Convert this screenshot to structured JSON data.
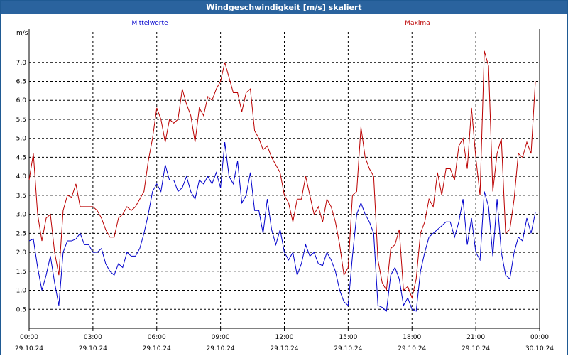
{
  "window": {
    "title": "Windgeschwindigkeit [m/s] skaliert"
  },
  "chart_data": {
    "type": "line",
    "title": "Windgeschwindigkeit [m/s] skaliert",
    "ylabel": "m/s",
    "ylim": [
      0,
      7.8
    ],
    "y_ticks": [
      0.5,
      1.0,
      1.5,
      2.0,
      2.5,
      3.0,
      3.5,
      4.0,
      4.5,
      5.0,
      5.5,
      6.0,
      6.5,
      7.0
    ],
    "y_tick_labels": [
      "0,5",
      "1,0",
      "1,5",
      "2,0",
      "2,5",
      "3,0",
      "3,5",
      "4,0",
      "4,5",
      "5,0",
      "5,5",
      "6,0",
      "6,5",
      "7,0"
    ],
    "xlim_hours": [
      0,
      24
    ],
    "x_ticks": [
      {
        "hour": 0,
        "time": "00:00",
        "date": "29.10.24"
      },
      {
        "hour": 3,
        "time": "03:00",
        "date": "29.10.24"
      },
      {
        "hour": 6,
        "time": "06:00",
        "date": "29.10.24"
      },
      {
        "hour": 9,
        "time": "09:00",
        "date": "29.10.24"
      },
      {
        "hour": 12,
        "time": "12:00",
        "date": "29.10.24"
      },
      {
        "hour": 15,
        "time": "15:00",
        "date": "29.10.24"
      },
      {
        "hour": 18,
        "time": "18:00",
        "date": "29.10.24"
      },
      {
        "hour": 21,
        "time": "21:00",
        "date": "29.10.24"
      },
      {
        "hour": 24,
        "time": "00:00",
        "date": "30.10.24"
      }
    ],
    "grid": true,
    "series": [
      {
        "name": "Mittelwerte",
        "color": "#0000cc",
        "points": [
          [
            0.0,
            2.3
          ],
          [
            0.2,
            2.35
          ],
          [
            0.4,
            1.6
          ],
          [
            0.6,
            1.0
          ],
          [
            0.8,
            1.4
          ],
          [
            1.0,
            1.9
          ],
          [
            1.2,
            1.2
          ],
          [
            1.4,
            0.6
          ],
          [
            1.6,
            2.0
          ],
          [
            1.8,
            2.3
          ],
          [
            2.0,
            2.3
          ],
          [
            2.2,
            2.35
          ],
          [
            2.4,
            2.5
          ],
          [
            2.6,
            2.2
          ],
          [
            2.8,
            2.2
          ],
          [
            3.0,
            2.0
          ],
          [
            3.2,
            2.0
          ],
          [
            3.4,
            2.1
          ],
          [
            3.6,
            1.7
          ],
          [
            3.8,
            1.5
          ],
          [
            4.0,
            1.4
          ],
          [
            4.2,
            1.7
          ],
          [
            4.4,
            1.6
          ],
          [
            4.6,
            2.0
          ],
          [
            4.8,
            1.9
          ],
          [
            5.0,
            1.9
          ],
          [
            5.2,
            2.1
          ],
          [
            5.4,
            2.5
          ],
          [
            5.6,
            3.0
          ],
          [
            5.8,
            3.6
          ],
          [
            6.0,
            3.8
          ],
          [
            6.2,
            3.6
          ],
          [
            6.4,
            4.3
          ],
          [
            6.6,
            3.9
          ],
          [
            6.8,
            3.9
          ],
          [
            7.0,
            3.6
          ],
          [
            7.2,
            3.7
          ],
          [
            7.4,
            4.0
          ],
          [
            7.6,
            3.6
          ],
          [
            7.8,
            3.4
          ],
          [
            8.0,
            3.9
          ],
          [
            8.2,
            3.8
          ],
          [
            8.4,
            4.0
          ],
          [
            8.6,
            3.8
          ],
          [
            8.8,
            4.1
          ],
          [
            9.0,
            3.7
          ],
          [
            9.2,
            4.9
          ],
          [
            9.4,
            4.0
          ],
          [
            9.6,
            3.8
          ],
          [
            9.8,
            4.4
          ],
          [
            10.0,
            3.3
          ],
          [
            10.2,
            3.5
          ],
          [
            10.4,
            4.1
          ],
          [
            10.6,
            3.1
          ],
          [
            10.8,
            3.1
          ],
          [
            11.0,
            2.5
          ],
          [
            11.2,
            3.4
          ],
          [
            11.4,
            2.6
          ],
          [
            11.6,
            2.2
          ],
          [
            11.8,
            2.6
          ],
          [
            12.0,
            2.0
          ],
          [
            12.2,
            1.8
          ],
          [
            12.4,
            2.0
          ],
          [
            12.6,
            1.4
          ],
          [
            12.8,
            1.7
          ],
          [
            13.0,
            2.2
          ],
          [
            13.2,
            1.9
          ],
          [
            13.4,
            2.0
          ],
          [
            13.6,
            1.7
          ],
          [
            13.8,
            1.65
          ],
          [
            14.0,
            2.0
          ],
          [
            14.2,
            1.8
          ],
          [
            14.4,
            1.5
          ],
          [
            14.6,
            1.0
          ],
          [
            14.8,
            0.7
          ],
          [
            15.0,
            0.6
          ],
          [
            15.2,
            1.9
          ],
          [
            15.4,
            3.0
          ],
          [
            15.6,
            3.3
          ],
          [
            15.8,
            3.0
          ],
          [
            16.0,
            2.8
          ],
          [
            16.2,
            2.5
          ],
          [
            16.4,
            0.6
          ],
          [
            16.6,
            0.55
          ],
          [
            16.8,
            0.45
          ],
          [
            17.0,
            1.4
          ],
          [
            17.2,
            1.6
          ],
          [
            17.4,
            1.3
          ],
          [
            17.6,
            0.6
          ],
          [
            17.8,
            0.8
          ],
          [
            18.0,
            0.5
          ],
          [
            18.2,
            0.45
          ],
          [
            18.4,
            1.5
          ],
          [
            18.6,
            2.0
          ],
          [
            18.8,
            2.4
          ],
          [
            19.0,
            2.5
          ],
          [
            19.2,
            2.6
          ],
          [
            19.4,
            2.7
          ],
          [
            19.6,
            2.8
          ],
          [
            19.8,
            2.8
          ],
          [
            20.0,
            2.4
          ],
          [
            20.2,
            2.8
          ],
          [
            20.4,
            3.4
          ],
          [
            20.6,
            2.2
          ],
          [
            20.8,
            2.9
          ],
          [
            21.0,
            2.0
          ],
          [
            21.2,
            1.8
          ],
          [
            21.4,
            3.6
          ],
          [
            21.6,
            3.2
          ],
          [
            21.8,
            1.9
          ],
          [
            22.0,
            3.4
          ],
          [
            22.2,
            2.0
          ],
          [
            22.4,
            1.4
          ],
          [
            22.6,
            1.3
          ],
          [
            22.8,
            2.0
          ],
          [
            23.0,
            2.4
          ],
          [
            23.2,
            2.3
          ],
          [
            23.4,
            2.9
          ],
          [
            23.6,
            2.5
          ],
          [
            23.8,
            3.05
          ]
        ]
      },
      {
        "name": "Maxima",
        "color": "#bb0000",
        "points": [
          [
            0.0,
            3.9
          ],
          [
            0.2,
            4.6
          ],
          [
            0.4,
            3.0
          ],
          [
            0.6,
            2.3
          ],
          [
            0.8,
            2.9
          ],
          [
            1.0,
            3.0
          ],
          [
            1.2,
            2.0
          ],
          [
            1.4,
            1.4
          ],
          [
            1.6,
            3.1
          ],
          [
            1.8,
            3.5
          ],
          [
            2.0,
            3.45
          ],
          [
            2.2,
            3.8
          ],
          [
            2.4,
            3.2
          ],
          [
            2.6,
            3.2
          ],
          [
            2.8,
            3.2
          ],
          [
            3.0,
            3.2
          ],
          [
            3.2,
            3.1
          ],
          [
            3.4,
            2.9
          ],
          [
            3.6,
            2.6
          ],
          [
            3.8,
            2.4
          ],
          [
            4.0,
            2.4
          ],
          [
            4.2,
            2.9
          ],
          [
            4.4,
            3.0
          ],
          [
            4.6,
            3.2
          ],
          [
            4.8,
            3.1
          ],
          [
            5.0,
            3.2
          ],
          [
            5.2,
            3.4
          ],
          [
            5.4,
            3.6
          ],
          [
            5.6,
            4.4
          ],
          [
            5.8,
            5.0
          ],
          [
            6.0,
            5.8
          ],
          [
            6.2,
            5.5
          ],
          [
            6.4,
            4.9
          ],
          [
            6.6,
            5.5
          ],
          [
            6.8,
            5.4
          ],
          [
            7.0,
            5.5
          ],
          [
            7.2,
            6.3
          ],
          [
            7.4,
            5.9
          ],
          [
            7.6,
            5.6
          ],
          [
            7.8,
            4.9
          ],
          [
            8.0,
            5.8
          ],
          [
            8.2,
            5.6
          ],
          [
            8.4,
            6.1
          ],
          [
            8.6,
            6.0
          ],
          [
            8.8,
            6.3
          ],
          [
            9.0,
            6.5
          ],
          [
            9.2,
            7.0
          ],
          [
            9.4,
            6.6
          ],
          [
            9.6,
            6.2
          ],
          [
            9.8,
            6.2
          ],
          [
            10.0,
            5.7
          ],
          [
            10.2,
            6.2
          ],
          [
            10.4,
            6.3
          ],
          [
            10.6,
            5.2
          ],
          [
            10.8,
            5.0
          ],
          [
            11.0,
            4.7
          ],
          [
            11.2,
            4.8
          ],
          [
            11.4,
            4.5
          ],
          [
            11.6,
            4.3
          ],
          [
            11.8,
            4.1
          ],
          [
            12.0,
            3.5
          ],
          [
            12.2,
            3.3
          ],
          [
            12.4,
            2.8
          ],
          [
            12.6,
            3.4
          ],
          [
            12.8,
            3.4
          ],
          [
            13.0,
            4.0
          ],
          [
            13.2,
            3.5
          ],
          [
            13.4,
            3.0
          ],
          [
            13.6,
            3.2
          ],
          [
            13.8,
            2.8
          ],
          [
            14.0,
            3.4
          ],
          [
            14.2,
            3.2
          ],
          [
            14.4,
            2.8
          ],
          [
            14.6,
            2.2
          ],
          [
            14.8,
            1.4
          ],
          [
            15.0,
            1.6
          ],
          [
            15.2,
            3.5
          ],
          [
            15.4,
            3.6
          ],
          [
            15.6,
            5.3
          ],
          [
            15.8,
            4.5
          ],
          [
            16.0,
            4.2
          ],
          [
            16.2,
            4.0
          ],
          [
            16.4,
            1.8
          ],
          [
            16.6,
            1.2
          ],
          [
            16.8,
            1.0
          ],
          [
            17.0,
            2.1
          ],
          [
            17.2,
            2.2
          ],
          [
            17.4,
            2.6
          ],
          [
            17.6,
            1.0
          ],
          [
            17.8,
            1.1
          ],
          [
            18.0,
            0.8
          ],
          [
            18.2,
            1.3
          ],
          [
            18.4,
            2.5
          ],
          [
            18.6,
            2.8
          ],
          [
            18.8,
            3.4
          ],
          [
            19.0,
            3.2
          ],
          [
            19.2,
            4.1
          ],
          [
            19.4,
            3.5
          ],
          [
            19.6,
            4.2
          ],
          [
            19.8,
            4.2
          ],
          [
            20.0,
            3.9
          ],
          [
            20.2,
            4.8
          ],
          [
            20.4,
            5.0
          ],
          [
            20.6,
            4.2
          ],
          [
            20.8,
            5.8
          ],
          [
            21.0,
            4.5
          ],
          [
            21.2,
            3.5
          ],
          [
            21.4,
            7.3
          ],
          [
            21.6,
            6.9
          ],
          [
            21.8,
            3.6
          ],
          [
            22.0,
            4.6
          ],
          [
            22.2,
            5.0
          ],
          [
            22.4,
            2.5
          ],
          [
            22.6,
            2.6
          ],
          [
            22.8,
            3.4
          ],
          [
            23.0,
            4.6
          ],
          [
            23.2,
            4.5
          ],
          [
            23.4,
            4.9
          ],
          [
            23.6,
            4.6
          ],
          [
            23.8,
            6.5
          ]
        ]
      }
    ]
  }
}
